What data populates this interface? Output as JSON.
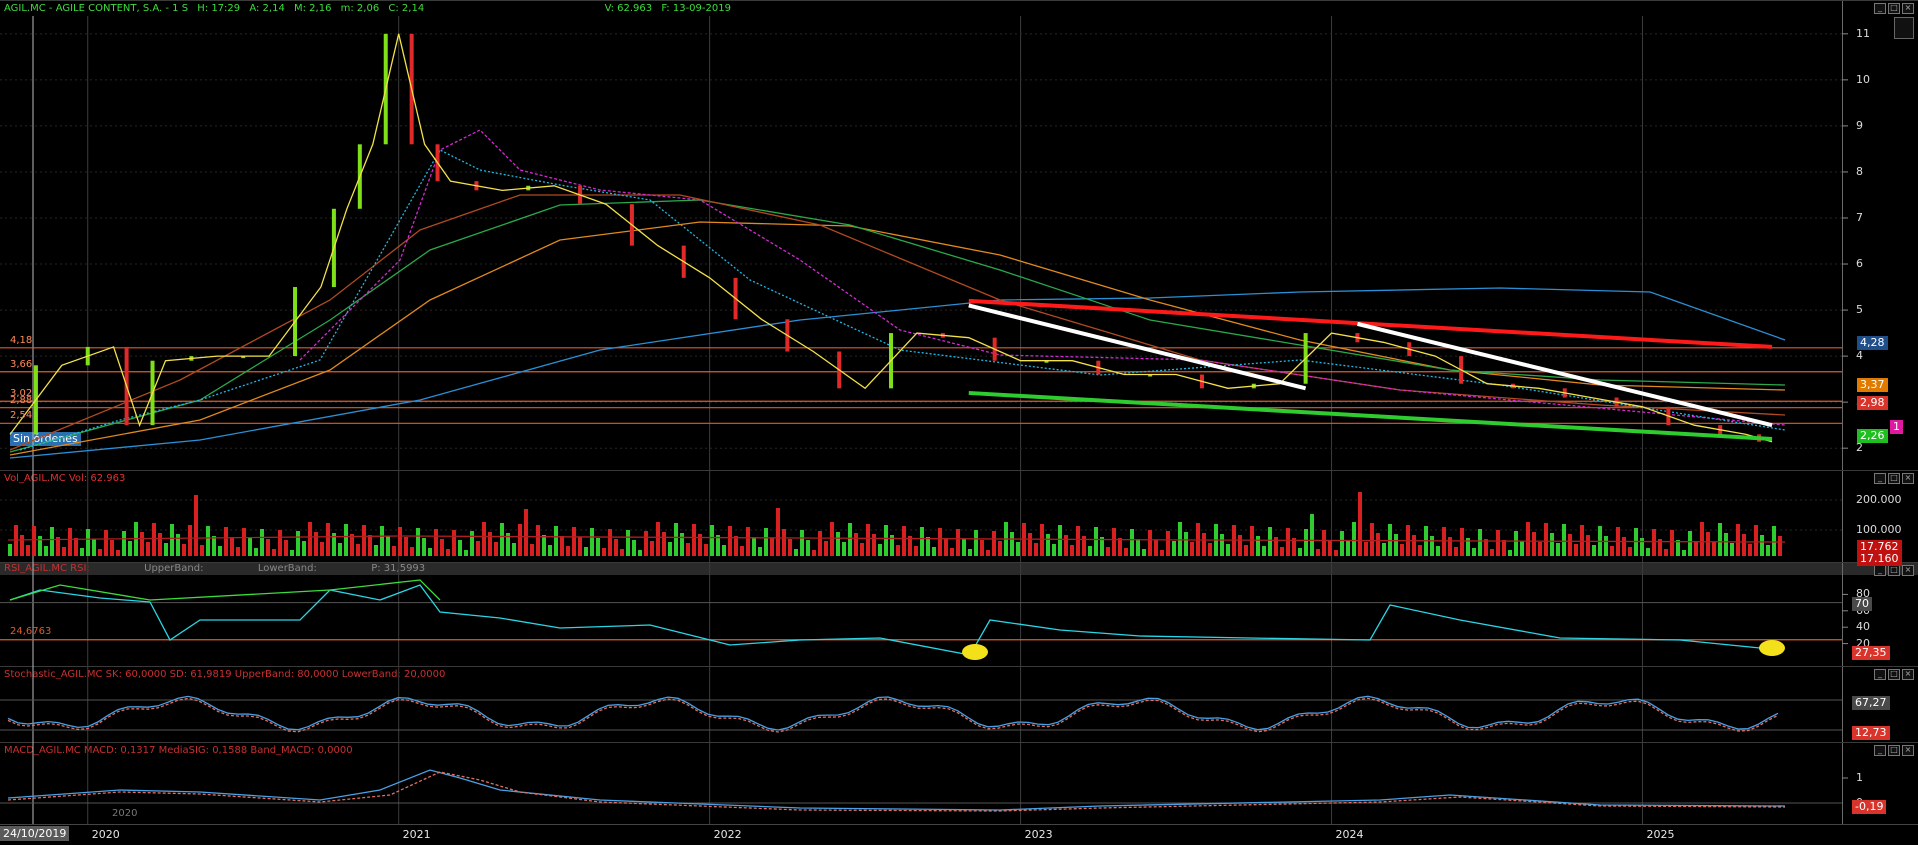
{
  "price_panel": {
    "symbol": "AGIL.MC - AGILE CONTENT, S.A. - 1 S",
    "header": {
      "h": "H: 17:29",
      "a": "A: 2,14",
      "m": "M: 2,16",
      "mm": "m: 2,06",
      "c": "C: 2,14",
      "v": "V: 62.963",
      "f": "F: 13-09-2019"
    },
    "order_status": "Sin órdenes",
    "level_labels": [
      "4,18",
      "3,66",
      "3,02",
      "2,88",
      "2,54"
    ],
    "right_tags": [
      {
        "text": "4,28",
        "color": "#1f4f8a"
      },
      {
        "text": "3,37",
        "color": "#e07b00"
      },
      {
        "text": "2,98",
        "color": "#d9342b"
      },
      {
        "text": "2,26",
        "color": "#1fbf1f"
      }
    ],
    "pink_tag_text": "1",
    "colors": {
      "level_line": "#e05a2b",
      "trend_red": "#ff1a1a",
      "trend_white": "#ffffff",
      "trend_green": "#2ecc2e"
    }
  },
  "volume_panel": {
    "title": "Vol_AGIL.MC  Vol: 62.963",
    "ticks": [
      "200.000",
      "100.000"
    ],
    "tags": [
      {
        "text": "17.762",
        "color": "#c01010"
      },
      {
        "text": "17.160",
        "color": "#c01010"
      }
    ]
  },
  "rsi_panel": {
    "title": "RSI_AGIL.MC  RSI:",
    "upper": "UpperBand:",
    "lower": "LowerBand:",
    "value": "P: 31,5993",
    "left_label": "24,6763",
    "ticks": [
      "80",
      "60",
      "40",
      "20"
    ],
    "tags": [
      {
        "text": "70",
        "color": "#4a4a4a"
      },
      {
        "text": "27,35",
        "color": "#d9342b"
      }
    ]
  },
  "stoch_panel": {
    "title": "Stochastic_AGIL.MC  SK: 60,0000  SD: 61,9819  UpperBand: 80,0000  LowerBand: 20,0000",
    "tags": [
      {
        "text": "67,27",
        "color": "#4a4a4a"
      },
      {
        "text": "12,73",
        "color": "#d9342b"
      }
    ]
  },
  "macd_panel": {
    "title": "MACD_AGIL.MC  MACD: 0,1317  MediaSIG: 0,1588  Band_MACD: 0,0000",
    "ticks": [
      "1",
      "0"
    ],
    "tags": [
      {
        "text": "-0,19",
        "color": "#d9342b"
      }
    ]
  },
  "x_axis": {
    "current_date": "24/10/2019",
    "years": [
      "2020",
      "2021",
      "2022",
      "2023",
      "2024",
      "2025"
    ],
    "small_year": "2020"
  },
  "chart_data": {
    "type": "line",
    "title": "AGIL.MC - AGILE CONTENT, S.A. - 1 S",
    "y_ticks": [
      11,
      10,
      9,
      8,
      7,
      6,
      5,
      4,
      3,
      2
    ],
    "ylim": [
      1.7,
      11.3
    ],
    "x": [
      "2019-10",
      "2019-12",
      "2020-02",
      "2020-03",
      "2020-04",
      "2020-06",
      "2020-08",
      "2020-10",
      "2020-11",
      "2020-12",
      "2021-01",
      "2021-02",
      "2021-03",
      "2021-05",
      "2021-07",
      "2021-09",
      "2021-11",
      "2022-01",
      "2022-03",
      "2022-05",
      "2022-07",
      "2022-09",
      "2022-11",
      "2023-01",
      "2023-03",
      "2023-05",
      "2023-07",
      "2023-09",
      "2023-11",
      "2024-01",
      "2024-03",
      "2024-05",
      "2024-07",
      "2024-09",
      "2024-11",
      "2025-01",
      "2025-03",
      "2025-05",
      "2025-06"
    ],
    "series": [
      {
        "name": "",
        "values": [
          2.3,
          3.8,
          4.2,
          2.5,
          3.9,
          4.0,
          4.0,
          5.5,
          7.2,
          8.6,
          11.0,
          8.6,
          7.8,
          7.6,
          7.7,
          7.3,
          6.4,
          5.7,
          4.8,
          4.1,
          3.3,
          4.5,
          4.4,
          3.9,
          3.9,
          3.6,
          3.6,
          3.3,
          3.4,
          4.5,
          4.3,
          4.0,
          3.4,
          3.3,
          3.1,
          2.9,
          2.5,
          2.3,
          2.14
        ]
      }
    ],
    "horizontal_levels": [
      4.18,
      3.66,
      3.02,
      2.88,
      2.54
    ],
    "trendlines": [
      {
        "color": "red",
        "from": [
          "2022-11",
          5.2
        ],
        "to": [
          "2025-06",
          4.2
        ]
      },
      {
        "color": "white",
        "from": [
          "2022-11",
          5.1
        ],
        "to": [
          "2023-12",
          3.3
        ]
      },
      {
        "color": "white",
        "from": [
          "2024-02",
          4.7
        ],
        "to": [
          "2025-06",
          2.5
        ]
      },
      {
        "color": "green",
        "from": [
          "2022-11",
          3.2
        ],
        "to": [
          "2025-06",
          2.2
        ]
      }
    ],
    "volume_ticks": [
      200000,
      100000
    ],
    "rsi_ticks": [
      80,
      60,
      40,
      20
    ]
  }
}
